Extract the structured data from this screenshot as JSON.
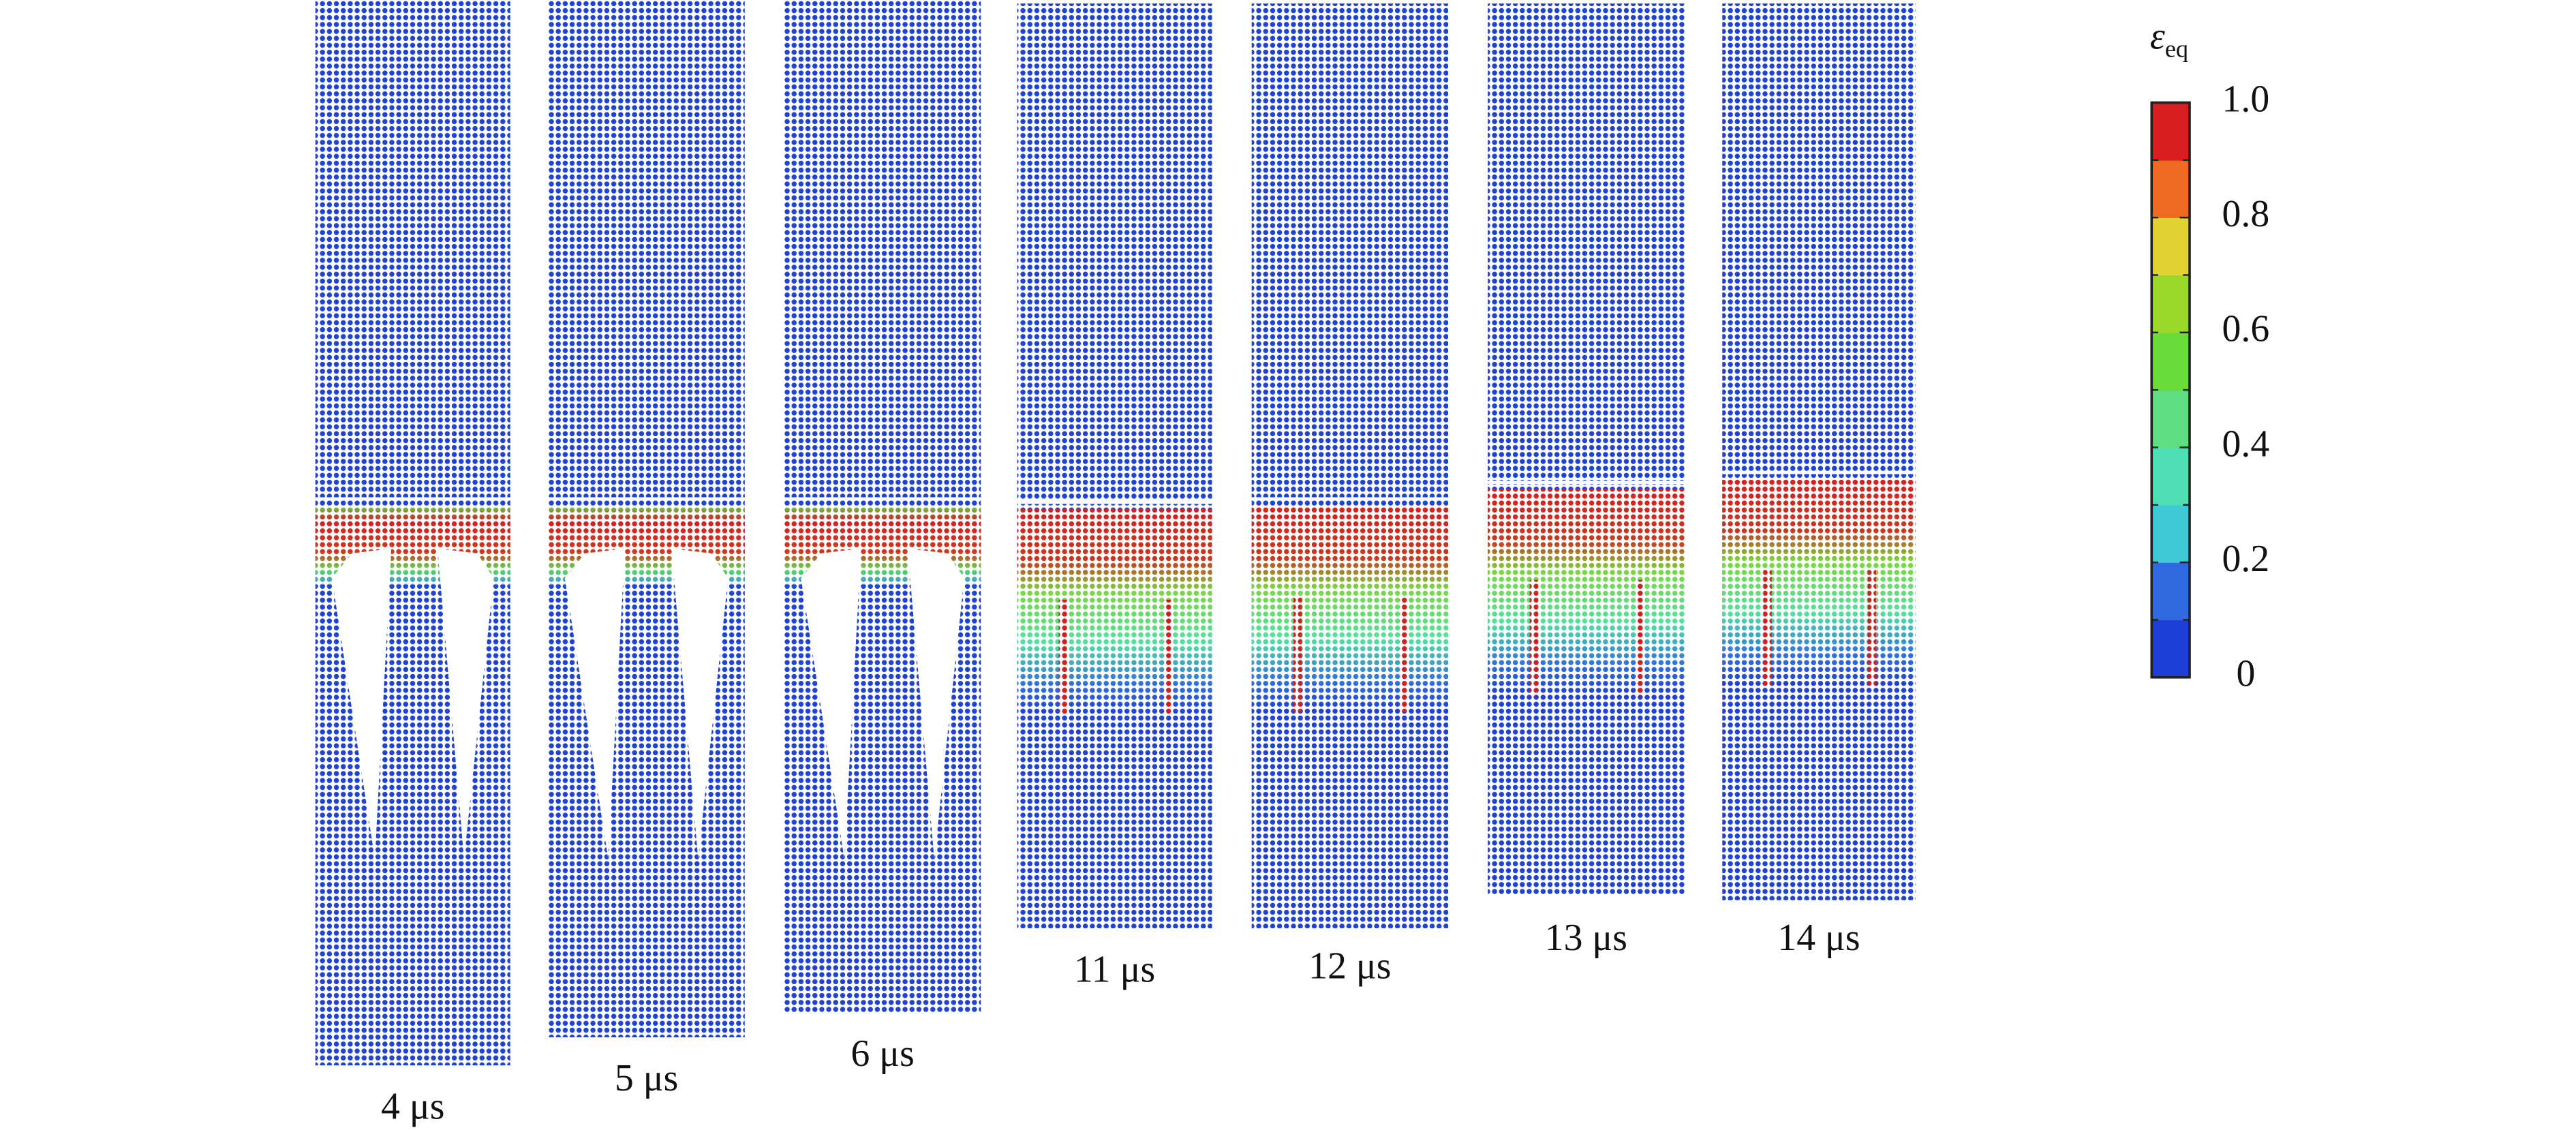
{
  "panels": [
    {
      "label": "4 μs"
    },
    {
      "label": "5 μs"
    },
    {
      "label": "6 μs"
    },
    {
      "label": "11 μs"
    },
    {
      "label": "12 μs"
    },
    {
      "label": "13 μs"
    },
    {
      "label": "14 μs"
    }
  ],
  "colorbar": {
    "symbol": "ε",
    "subscript": "eq",
    "colors": [
      "#1d3ed6",
      "#2f6ae0",
      "#3fc8d6",
      "#4ee0b4",
      "#5ede80",
      "#6adc3a",
      "#9ad82a",
      "#e2d232",
      "#ee6a22",
      "#d81e1e"
    ],
    "ticks": [
      0,
      {
        "value": 0.2,
        "label": "0.2"
      },
      {
        "value": 0.4,
        "label": "0.4"
      },
      {
        "value": 0.6,
        "label": "0.6"
      },
      {
        "value": 0.8,
        "label": "0.8"
      },
      {
        "value": 1,
        "label": "1.0"
      }
    ]
  }
}
